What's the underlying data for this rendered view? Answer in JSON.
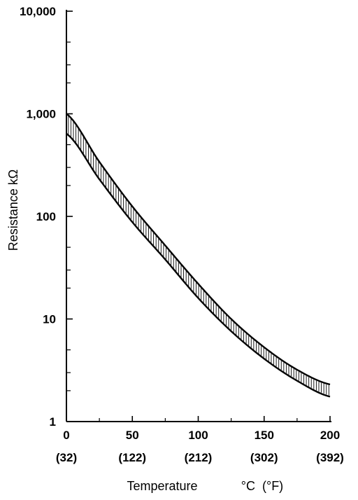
{
  "chart_data": {
    "type": "area",
    "ylabel": "Resistance kΩ",
    "xlabel": "Temperature",
    "xlabel_unit": "°C  (°F)",
    "xlim": [
      0,
      200
    ],
    "ylim": [
      1,
      10000
    ],
    "y_scale": "log",
    "grid": false,
    "y_ticks": [
      1,
      10,
      100,
      1000,
      10000
    ],
    "y_tick_labels": [
      "1",
      "10",
      "100",
      "1,000",
      "10,000"
    ],
    "x_ticks": [
      0,
      50,
      100,
      150,
      200
    ],
    "x_tick_labels": [
      "0",
      "50",
      "100",
      "150",
      "200"
    ],
    "x_tick_sublabels": [
      "(32)",
      "(122)",
      "(212)",
      "(302)",
      "(392)"
    ],
    "series": [
      {
        "x": [
          0,
          25,
          50,
          75,
          100,
          125,
          150,
          175,
          200
        ],
        "values": [
          1000,
          340,
          125,
          52,
          22,
          10,
          5.3,
          3.2,
          2.3
        ]
      },
      {
        "x": [
          0,
          25,
          50,
          75,
          100,
          125,
          150,
          175,
          200
        ],
        "values": [
          640,
          230,
          88,
          38,
          16,
          7.6,
          4.1,
          2.5,
          1.75
        ]
      }
    ]
  }
}
